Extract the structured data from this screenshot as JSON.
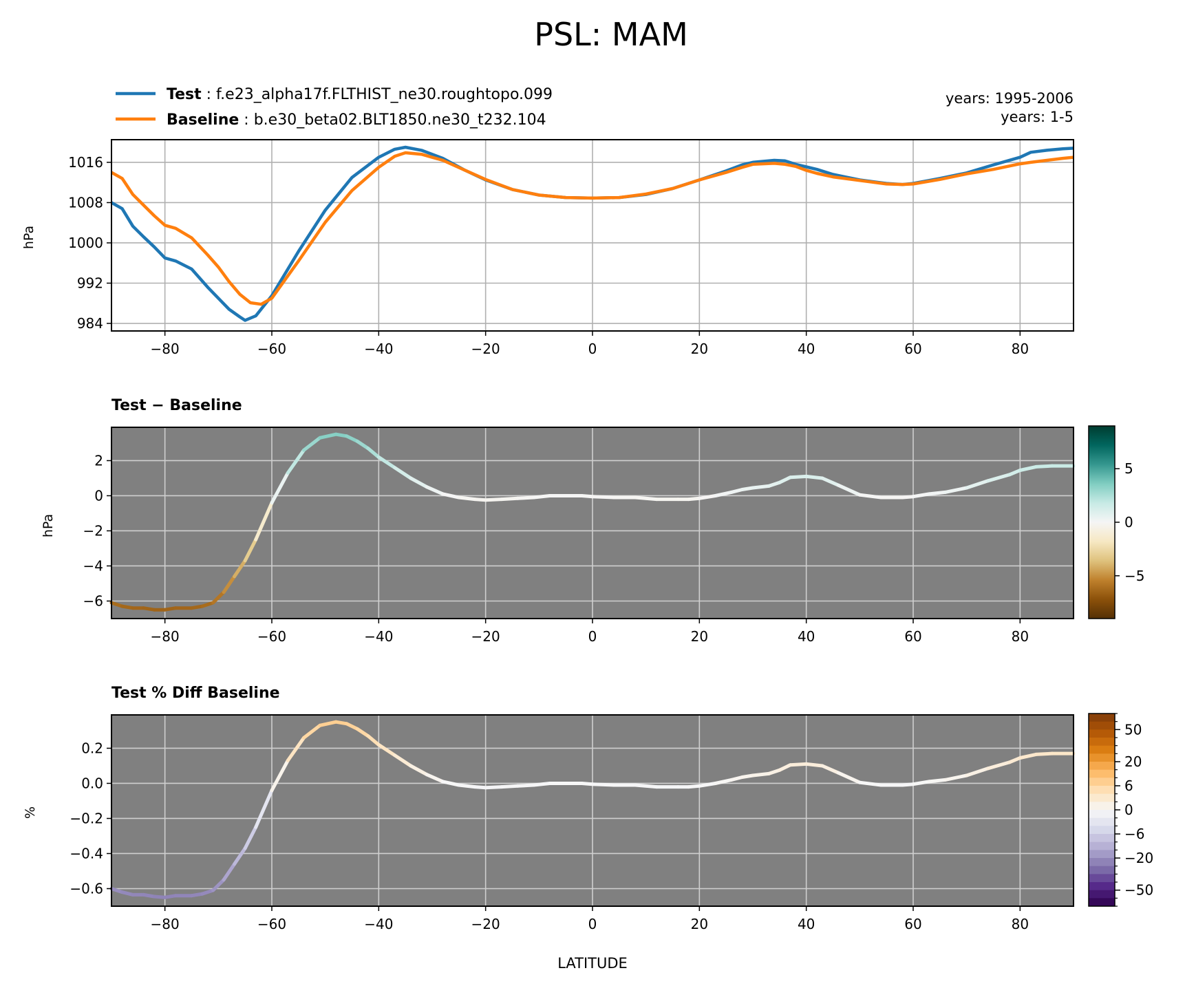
{
  "title": "PSL: MAM",
  "colors": {
    "test": "#1f77b4",
    "baseline": "#ff7f0e",
    "panel_bg": "#808080",
    "grid_light": "#b0b0b0",
    "grid_dark": "#cfcfcf"
  },
  "legend": {
    "test_label": "Test",
    "test_case": "f.e23_alpha17f.FLTHIST_ne30.roughtopo.099",
    "baseline_label": "Baseline",
    "baseline_case": "b.e30_beta02.BLT1850.ne30_t232.104",
    "test_years": "years: 1995-2006",
    "baseline_years": "years: 1-5"
  },
  "chart_data": [
    {
      "type": "line",
      "ylabel": "hPa",
      "xlim": [
        -90,
        90
      ],
      "ylim": [
        982.5,
        1020.5
      ],
      "grid": true,
      "legend_placement": "top-left (above axes)",
      "x_ticks": [
        -80,
        -60,
        -40,
        -20,
        0,
        20,
        40,
        60,
        80
      ],
      "x_tick_labels": [
        "−80",
        "−60",
        "−40",
        "−20",
        "0",
        "20",
        "40",
        "60",
        "80"
      ],
      "y_ticks": [
        984,
        992,
        1000,
        1008,
        1016
      ],
      "y_tick_labels": [
        "984",
        "992",
        "1000",
        "1008",
        "1016"
      ],
      "series": [
        {
          "name": "Test",
          "x": [
            -90,
            -88,
            -86,
            -84,
            -82,
            -80,
            -78,
            -75,
            -72,
            -70,
            -68,
            -66,
            -65,
            -63,
            -60,
            -55,
            -50,
            -45,
            -40,
            -37,
            -35,
            -32,
            -28,
            -24,
            -20,
            -15,
            -10,
            -5,
            0,
            5,
            10,
            15,
            20,
            25,
            28,
            30,
            34,
            36,
            38,
            40,
            42,
            45,
            50,
            55,
            58,
            60,
            65,
            70,
            75,
            80,
            82,
            85,
            88,
            90
          ],
          "y": [
            1008.0,
            1006.8,
            1003.3,
            1001.2,
            999.2,
            997.0,
            996.4,
            994.8,
            991.2,
            989.0,
            986.8,
            985.3,
            984.6,
            985.5,
            989.5,
            998.3,
            1006.5,
            1013.0,
            1017.0,
            1018.6,
            1019.0,
            1018.4,
            1016.8,
            1014.5,
            1012.5,
            1010.6,
            1009.5,
            1009.0,
            1008.9,
            1009.0,
            1009.6,
            1010.8,
            1012.5,
            1014.3,
            1015.5,
            1016.0,
            1016.4,
            1016.3,
            1015.6,
            1015.1,
            1014.6,
            1013.6,
            1012.5,
            1011.8,
            1011.6,
            1011.8,
            1012.8,
            1013.9,
            1015.5,
            1017.0,
            1018.0,
            1018.4,
            1018.7,
            1018.8
          ]
        },
        {
          "name": "Baseline",
          "x": [
            -90,
            -88,
            -86,
            -84,
            -82,
            -80,
            -78,
            -75,
            -72,
            -70,
            -68,
            -66,
            -64,
            -62,
            -60,
            -55,
            -50,
            -45,
            -40,
            -37,
            -35,
            -32,
            -28,
            -24,
            -20,
            -15,
            -10,
            -5,
            0,
            5,
            10,
            15,
            20,
            25,
            28,
            30,
            34,
            36,
            38,
            40,
            42,
            45,
            50,
            55,
            58,
            60,
            65,
            70,
            75,
            80,
            82,
            85,
            88,
            90
          ],
          "y": [
            1014.0,
            1012.8,
            1009.6,
            1007.5,
            1005.4,
            1003.5,
            1002.9,
            1001.0,
            997.6,
            995.2,
            992.3,
            989.8,
            988.1,
            987.8,
            989.0,
            996.4,
            1004.1,
            1010.4,
            1015.0,
            1017.2,
            1017.9,
            1017.6,
            1016.4,
            1014.5,
            1012.6,
            1010.6,
            1009.5,
            1009.0,
            1008.9,
            1009.0,
            1009.7,
            1010.8,
            1012.5,
            1014.0,
            1015.0,
            1015.6,
            1015.8,
            1015.6,
            1015.2,
            1014.4,
            1013.8,
            1013.1,
            1012.4,
            1011.7,
            1011.6,
            1011.7,
            1012.6,
            1013.7,
            1014.6,
            1015.7,
            1016.0,
            1016.4,
            1016.8,
            1017.0
          ]
        }
      ]
    },
    {
      "type": "line",
      "title": "Test − Baseline",
      "ylabel": "hPa",
      "xlim": [
        -90,
        90
      ],
      "ylim": [
        -7.0,
        3.9
      ],
      "grid": true,
      "x_ticks": [
        -80,
        -60,
        -40,
        -20,
        0,
        20,
        40,
        60,
        80
      ],
      "x_tick_labels": [
        "−80",
        "−60",
        "−40",
        "−20",
        "0",
        "20",
        "40",
        "60",
        "80"
      ],
      "y_ticks": [
        -6,
        -4,
        -2,
        0,
        2
      ],
      "y_tick_labels": [
        "−6",
        "−4",
        "−2",
        "0",
        "2"
      ],
      "colormap": "BrBG",
      "colorbar": {
        "vmin": -9,
        "vmax": 9,
        "ticks": [
          -5,
          0,
          5
        ],
        "tick_labels": [
          "−5",
          "0",
          "5"
        ]
      },
      "series": [
        {
          "x": [
            -90,
            -88,
            -86,
            -84,
            -82,
            -80,
            -78,
            -75,
            -73,
            -71,
            -69,
            -67,
            -65,
            -63,
            -60,
            -57,
            -54,
            -51,
            -48,
            -46,
            -44,
            -42,
            -40,
            -37,
            -34,
            -31,
            -28,
            -25,
            -22,
            -20,
            -17,
            -14,
            -11,
            -8,
            -5,
            -2,
            0,
            4,
            8,
            12,
            16,
            18,
            20,
            23,
            26,
            28,
            30,
            33,
            35,
            37,
            40,
            43,
            46,
            50,
            54,
            58,
            60,
            63,
            66,
            70,
            74,
            78,
            80,
            83,
            86,
            90
          ],
          "y": [
            -6.1,
            -6.3,
            -6.4,
            -6.4,
            -6.5,
            -6.5,
            -6.4,
            -6.4,
            -6.3,
            -6.1,
            -5.5,
            -4.6,
            -3.7,
            -2.5,
            -0.4,
            1.3,
            2.6,
            3.3,
            3.5,
            3.4,
            3.1,
            2.7,
            2.2,
            1.6,
            1.0,
            0.5,
            0.1,
            -0.1,
            -0.2,
            -0.25,
            -0.2,
            -0.15,
            -0.1,
            0.0,
            0.0,
            0.0,
            -0.05,
            -0.1,
            -0.1,
            -0.2,
            -0.2,
            -0.2,
            -0.15,
            0.0,
            0.2,
            0.35,
            0.45,
            0.55,
            0.75,
            1.05,
            1.1,
            1.0,
            0.6,
            0.05,
            -0.1,
            -0.1,
            -0.05,
            0.1,
            0.2,
            0.45,
            0.85,
            1.2,
            1.45,
            1.65,
            1.7,
            1.7
          ]
        }
      ]
    },
    {
      "type": "line",
      "title": "Test % Diff Baseline",
      "ylabel": "%",
      "xlabel": "LATITUDE",
      "xlim": [
        -90,
        90
      ],
      "ylim": [
        -0.7,
        0.39
      ],
      "grid": true,
      "x_ticks": [
        -80,
        -60,
        -40,
        -20,
        0,
        20,
        40,
        60,
        80
      ],
      "x_tick_labels": [
        "−80",
        "−60",
        "−40",
        "−20",
        "0",
        "20",
        "40",
        "60",
        "80"
      ],
      "y_ticks": [
        -0.6,
        -0.4,
        -0.2,
        0.0,
        0.2
      ],
      "y_tick_labels": [
        "−0.6",
        "−0.4",
        "−0.2",
        "0.0",
        "0.2"
      ],
      "colormap": "PuOr_r (discrete)",
      "colorbar": {
        "levels": 24,
        "tick_labels": [
          "50",
          "20",
          "6",
          "0",
          "−6",
          "−20",
          "−50"
        ]
      },
      "series": [
        {
          "x": [
            -90,
            -88,
            -86,
            -84,
            -82,
            -80,
            -78,
            -75,
            -73,
            -71,
            -69,
            -67,
            -65,
            -63,
            -60,
            -57,
            -54,
            -51,
            -48,
            -46,
            -44,
            -42,
            -40,
            -37,
            -34,
            -31,
            -28,
            -25,
            -22,
            -20,
            -17,
            -14,
            -11,
            -8,
            -5,
            -2,
            0,
            4,
            8,
            12,
            16,
            18,
            20,
            23,
            26,
            28,
            30,
            33,
            35,
            37,
            40,
            43,
            46,
            50,
            54,
            58,
            60,
            63,
            66,
            70,
            74,
            78,
            80,
            83,
            86,
            90
          ],
          "y": [
            -0.6,
            -0.62,
            -0.635,
            -0.635,
            -0.645,
            -0.65,
            -0.64,
            -0.64,
            -0.63,
            -0.61,
            -0.55,
            -0.46,
            -0.37,
            -0.25,
            -0.04,
            0.13,
            0.26,
            0.33,
            0.35,
            0.34,
            0.31,
            0.27,
            0.22,
            0.16,
            0.1,
            0.05,
            0.01,
            -0.01,
            -0.02,
            -0.025,
            -0.02,
            -0.015,
            -0.01,
            0.0,
            0.0,
            0.0,
            -0.005,
            -0.01,
            -0.01,
            -0.02,
            -0.02,
            -0.02,
            -0.015,
            0.0,
            0.02,
            0.035,
            0.045,
            0.055,
            0.075,
            0.105,
            0.11,
            0.1,
            0.06,
            0.005,
            -0.01,
            -0.01,
            -0.005,
            0.01,
            0.02,
            0.045,
            0.085,
            0.12,
            0.145,
            0.165,
            0.17,
            0.17
          ]
        }
      ]
    }
  ]
}
